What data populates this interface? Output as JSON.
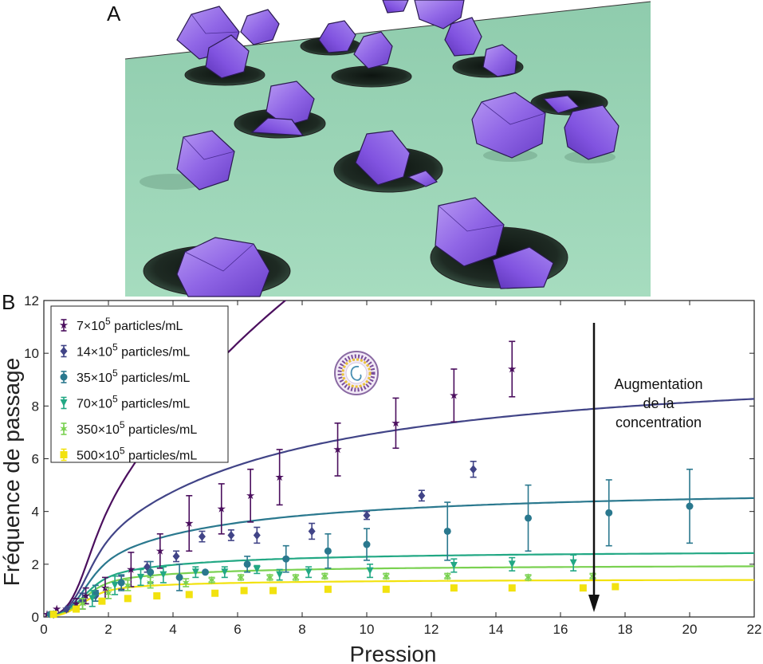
{
  "panel_a_label": "A",
  "panel_b_label": "B",
  "chart_data": {
    "type": "scatter",
    "xlabel": "Pression",
    "ylabel": "Fréquence de passage",
    "xlim": [
      0,
      22
    ],
    "ylim": [
      0,
      12
    ],
    "xticks": [
      0,
      2,
      4,
      6,
      8,
      10,
      12,
      14,
      16,
      18,
      20,
      22
    ],
    "yticks": [
      0,
      2,
      4,
      6,
      8,
      10,
      12
    ],
    "grid": false,
    "legend_position": "top-left",
    "annotation": [
      "Augmentation",
      "de la",
      "concentration"
    ],
    "series": [
      {
        "name_base": "7",
        "name_unit": "particles/mL",
        "color": "#4b0f5e",
        "marker": "star",
        "fit_vmax": 32.6,
        "fit_k": 38.5,
        "points": [
          [
            0.1,
            0.1,
            0
          ],
          [
            0.4,
            0.3,
            0
          ],
          [
            0.7,
            0.3,
            0
          ],
          [
            1.0,
            0.5,
            0.2
          ],
          [
            1.3,
            0.8,
            0.3
          ],
          [
            1.9,
            1.1,
            0.4
          ],
          [
            2.7,
            1.8,
            0.65
          ],
          [
            3.6,
            2.5,
            0.65
          ],
          [
            4.5,
            3.55,
            1.05
          ],
          [
            5.5,
            4.1,
            0.95
          ],
          [
            6.4,
            4.6,
            1.0
          ],
          [
            7.3,
            5.3,
            1.05
          ],
          [
            9.1,
            6.35,
            1.0
          ],
          [
            10.9,
            7.35,
            0.95
          ],
          [
            12.7,
            8.4,
            1.0
          ],
          [
            14.5,
            9.4,
            1.05
          ]
        ]
      },
      {
        "name_base": "14",
        "name_unit": "particles/mL",
        "color": "#414487",
        "marker": "diamond",
        "fit_vmax": 9.9,
        "fit_k": 13,
        "points": [
          [
            0.3,
            0.1,
            0
          ],
          [
            0.7,
            0.3,
            0
          ],
          [
            1.2,
            0.6,
            0.3
          ],
          [
            1.6,
            0.8,
            0.2
          ],
          [
            2.4,
            1.3,
            0.25
          ],
          [
            3.2,
            1.9,
            0.2
          ],
          [
            4.1,
            2.3,
            0.2
          ],
          [
            4.9,
            3.05,
            0.2
          ],
          [
            5.8,
            3.1,
            0.2
          ],
          [
            6.6,
            3.1,
            0.3
          ],
          [
            8.3,
            3.25,
            0.3
          ],
          [
            10.0,
            3.85,
            0.15
          ],
          [
            11.7,
            4.6,
            0.2
          ],
          [
            13.3,
            5.6,
            0.3
          ]
        ]
      },
      {
        "name_base": "35",
        "name_unit": "particles/mL",
        "color": "#2a788e",
        "marker": "circle",
        "fit_vmax": 5.0,
        "fit_k": 7.2,
        "points": [
          [
            0.2,
            0.1,
            0
          ],
          [
            1.6,
            0.9,
            0.3
          ],
          [
            2.4,
            1.3,
            0.3
          ],
          [
            3.3,
            1.7,
            0.4
          ],
          [
            4.2,
            1.5,
            0.5
          ],
          [
            5.0,
            1.7,
            0
          ],
          [
            6.3,
            2.0,
            0.3
          ],
          [
            7.5,
            2.2,
            0.5
          ],
          [
            8.8,
            2.5,
            0.65
          ],
          [
            10.0,
            2.75,
            0.6
          ],
          [
            12.5,
            3.25,
            1.1
          ],
          [
            15.0,
            3.75,
            1.25
          ],
          [
            17.5,
            3.95,
            1.25
          ],
          [
            20.0,
            4.2,
            1.4
          ]
        ]
      },
      {
        "name_base": "70",
        "name_unit": "particles/mL",
        "color": "#22a884",
        "marker": "triangle-down",
        "fit_vmax": 2.55,
        "fit_k": 3.5,
        "points": [
          [
            0.3,
            0.1,
            0
          ],
          [
            1.5,
            0.7,
            0.3
          ],
          [
            2.2,
            1.2,
            0.35
          ],
          [
            3.0,
            1.5,
            0.3
          ],
          [
            3.7,
            1.6,
            0.3
          ],
          [
            4.7,
            1.7,
            0.2
          ],
          [
            5.6,
            1.7,
            0.2
          ],
          [
            6.6,
            1.8,
            0.15
          ],
          [
            7.3,
            1.6,
            0.2
          ],
          [
            8.2,
            1.7,
            0.2
          ],
          [
            10.1,
            1.75,
            0.25
          ],
          [
            12.7,
            1.95,
            0.25
          ],
          [
            14.5,
            2.0,
            0.25
          ],
          [
            16.4,
            2.05,
            0.3
          ]
        ]
      },
      {
        "name_base": "350",
        "name_unit": "particles/mL",
        "color": "#7ad151",
        "marker": "star6",
        "fit_vmax": 2.0,
        "fit_k": 2.7,
        "points": [
          [
            0.3,
            0.1,
            0
          ],
          [
            1.2,
            0.5,
            0.2
          ],
          [
            2.0,
            0.9,
            0.2
          ],
          [
            2.6,
            1.2,
            0.2
          ],
          [
            3.3,
            1.3,
            0.2
          ],
          [
            4.4,
            1.3,
            0.15
          ],
          [
            5.2,
            1.4,
            0.1
          ],
          [
            6.1,
            1.5,
            0.1
          ],
          [
            7.0,
            1.5,
            0.1
          ],
          [
            7.8,
            1.5,
            0.1
          ],
          [
            8.7,
            1.55,
            0.1
          ],
          [
            10.6,
            1.55,
            0.1
          ],
          [
            12.5,
            1.55,
            0.1
          ],
          [
            15.0,
            1.5,
            0.1
          ],
          [
            17.0,
            1.55,
            0.1
          ]
        ]
      },
      {
        "name_base": "500",
        "name_unit": "particles/mL",
        "color": "#f2e20f",
        "marker": "square",
        "fit_vmax": 1.45,
        "fit_k": 2.2,
        "points": [
          [
            0.3,
            0.1,
            0
          ],
          [
            1.0,
            0.3,
            0
          ],
          [
            1.8,
            0.6,
            0.1
          ],
          [
            2.6,
            0.7,
            0.1
          ],
          [
            3.5,
            0.8,
            0.1
          ],
          [
            4.5,
            0.85,
            0.1
          ],
          [
            5.3,
            0.9,
            0.1
          ],
          [
            6.2,
            1.0,
            0.1
          ],
          [
            7.1,
            1.0,
            0.1
          ],
          [
            8.8,
            1.05,
            0.1
          ],
          [
            10.6,
            1.05,
            0.1
          ],
          [
            12.7,
            1.1,
            0.1
          ],
          [
            14.5,
            1.1,
            0.1
          ],
          [
            16.7,
            1.1,
            0.1
          ],
          [
            17.7,
            1.15,
            0.1
          ]
        ]
      }
    ]
  }
}
